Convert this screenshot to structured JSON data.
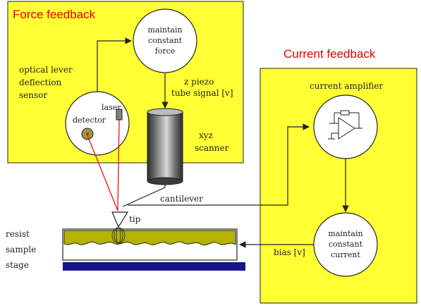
{
  "panels": {
    "force": {
      "title": "Force feedback",
      "fill": "#ffff33"
    },
    "current": {
      "title": "Current feedback",
      "fill": "#ffff33"
    }
  },
  "labels": {
    "optical_lever": [
      "optical lever",
      "deflection",
      "sensor"
    ],
    "maintain_force": [
      "maintain",
      "constant",
      "force"
    ],
    "z_piezo": [
      "z piezo",
      "tube signal [v]"
    ],
    "xyz_scanner": [
      "xyz",
      "scanner"
    ],
    "laser": "laser",
    "detector": "detector",
    "cantilever": "cantilever",
    "tip": "tip",
    "sample_side": [
      "resist",
      "sample",
      "stage"
    ],
    "current_amplifier": "current amplifier",
    "maintain_current": [
      "maintain",
      "constant",
      "current"
    ],
    "bias": "bias [v]"
  },
  "colors": {
    "laser_beam": "#ee1111",
    "sample": "#b3b300",
    "stage": "#14148c",
    "detector_fill": "#9a9a3a",
    "laser_fill": "#808080",
    "outline": "#222222"
  }
}
